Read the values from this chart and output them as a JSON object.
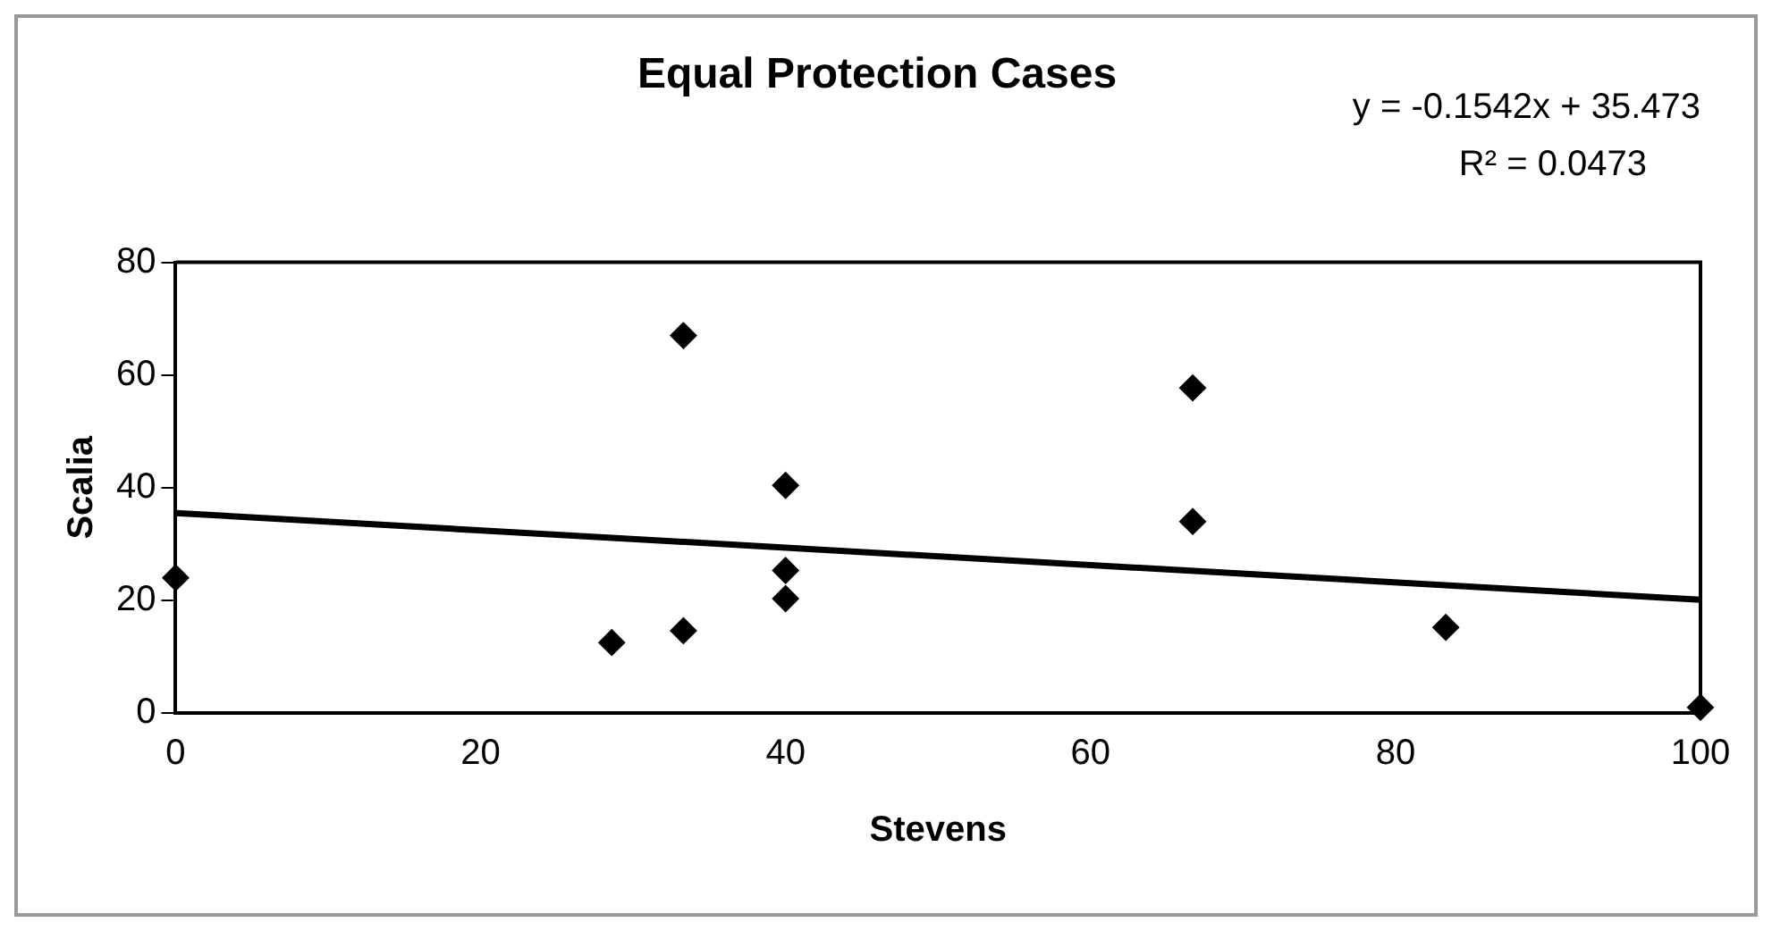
{
  "chart_data": {
    "type": "scatter",
    "title": "Equal Protection Cases",
    "xlabel": "Stevens",
    "ylabel": "Scalia",
    "annotations": [
      "y = -0.1542x + 35.473",
      "R² = 0.0473"
    ],
    "series": [
      {
        "color": "#000000",
        "marker": "diamond",
        "x": [
          0,
          28.6,
          33.3,
          33.3,
          40,
          40,
          40,
          66.7,
          66.7,
          83.3,
          100
        ],
        "values": [
          24,
          12.5,
          67,
          14.6,
          40.4,
          25.3,
          20.3,
          57.7,
          34,
          15.2,
          1
        ]
      },
      {
        "type": "line",
        "color": "#000000",
        "marker": "none",
        "line_style": "solid",
        "x": [
          0,
          100
        ],
        "values": [
          35.5,
          20.1
        ]
      }
    ],
    "xlim": [
      0,
      100
    ],
    "xticks": [
      0,
      20,
      40,
      60,
      80,
      100
    ],
    "ylim": [
      0,
      80
    ],
    "yticks": [
      0,
      20,
      40,
      60,
      80
    ],
    "grid": false,
    "legend": false
  }
}
